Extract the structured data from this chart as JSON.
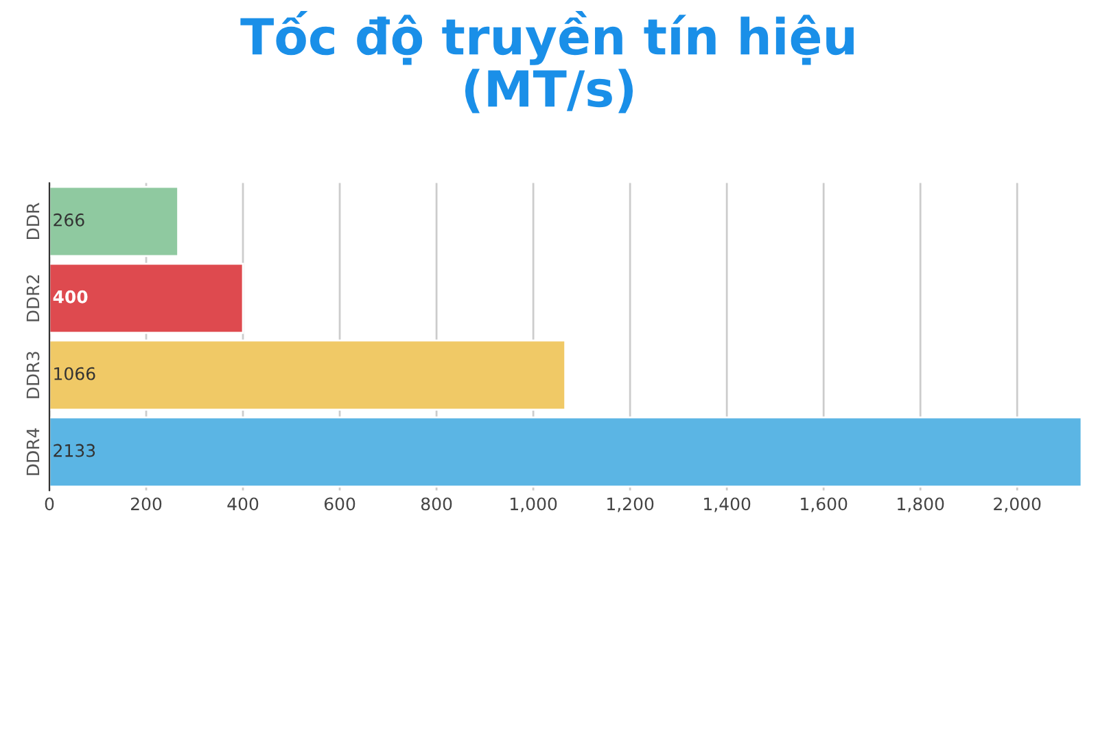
{
  "chart_data": {
    "type": "bar",
    "orientation": "horizontal",
    "title": "Tốc độ truyền tín hiệu\n(MT/s)",
    "categories": [
      "DDR",
      "DDR2",
      "DDR3",
      "DDR4"
    ],
    "values": [
      266,
      400,
      1066,
      2133
    ],
    "colors": [
      "#8fc9a0",
      "#de4a4f",
      "#f0c966",
      "#5bb5e4"
    ],
    "xlim": [
      0,
      2133
    ],
    "xticks": [
      0,
      200,
      400,
      600,
      800,
      {
        "value": 1000,
        "label": "1,000"
      },
      {
        "value": 1200,
        "label": "1,200"
      },
      {
        "value": 1400,
        "label": "1,400"
      },
      {
        "value": 1600,
        "label": "1,600"
      },
      {
        "value": 1800,
        "label": "1,800"
      },
      {
        "value": 2000,
        "label": "2,000"
      }
    ],
    "grid": "x",
    "data_labels": true,
    "legend": false
  }
}
